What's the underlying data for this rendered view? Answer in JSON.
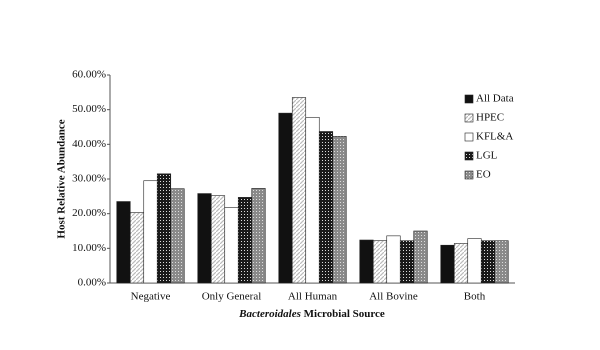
{
  "chart_data": {
    "type": "bar",
    "ylabel": "Host Relative Abundance",
    "xlabel": [
      "Bacteroidales",
      "Microbial Source"
    ],
    "categories": [
      "Negative",
      "Only General",
      "All Human",
      "All Bovine",
      "Both"
    ],
    "series": [
      {
        "name": "All Data",
        "color": "#111111",
        "pattern": "solid",
        "values": [
          23.5,
          25.8,
          49.0,
          12.4,
          10.9
        ]
      },
      {
        "name": "HPEC",
        "color": "#bbbbbb",
        "pattern": "diagonal",
        "values": [
          20.3,
          25.2,
          53.5,
          12.2,
          11.4
        ]
      },
      {
        "name": "KFL&A",
        "color": "#ffffff",
        "pattern": "solid",
        "values": [
          29.5,
          21.8,
          47.8,
          13.6,
          12.8
        ]
      },
      {
        "name": "LGL",
        "color": "#1a1a1a",
        "pattern": "dots",
        "values": [
          31.5,
          24.7,
          43.7,
          12.2,
          12.2
        ]
      },
      {
        "name": "EO",
        "color": "#8a8a8a",
        "pattern": "dots",
        "values": [
          27.2,
          27.3,
          42.3,
          15.0,
          12.2
        ]
      }
    ],
    "ylim": [
      0,
      60
    ],
    "yticks": [
      {
        "value": 0,
        "label": "0.00%"
      },
      {
        "value": 10,
        "label": "10.00%"
      },
      {
        "value": 20,
        "label": "20.00%"
      },
      {
        "value": 30,
        "label": "30.00%"
      },
      {
        "value": 40,
        "label": "40.00%"
      },
      {
        "value": 50,
        "label": "50.00%"
      },
      {
        "value": 60,
        "label": "60.00%"
      }
    ],
    "legend": "right"
  }
}
